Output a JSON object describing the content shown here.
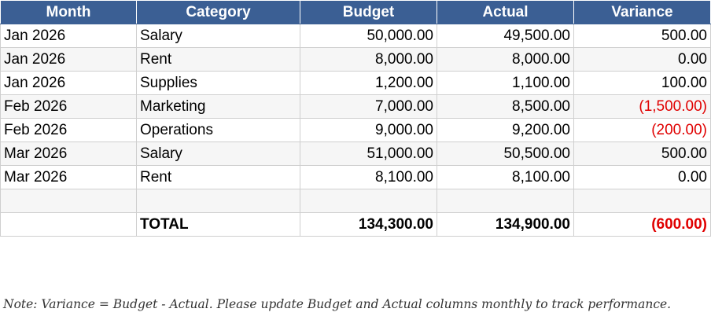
{
  "table": {
    "columns": [
      "Month",
      "Category",
      "Budget",
      "Actual",
      "Variance"
    ],
    "rows": [
      [
        "Jan 2026",
        "Salary",
        "50,000.00",
        "49,500.00",
        "500.00"
      ],
      [
        "Jan 2026",
        "Rent",
        "8,000.00",
        "8,000.00",
        "0.00"
      ],
      [
        "Jan 2026",
        "Supplies",
        "1,200.00",
        "1,100.00",
        "100.00"
      ],
      [
        "Feb 2026",
        "Marketing",
        "7,000.00",
        "8,500.00",
        "(1,500.00)"
      ],
      [
        "Feb 2026",
        "Operations",
        "9,000.00",
        "9,200.00",
        "(200.00)"
      ],
      [
        "Mar 2026",
        "Salary",
        "51,000.00",
        "50,500.00",
        "500.00"
      ],
      [
        "Mar 2026",
        "Rent",
        "8,100.00",
        "8,100.00",
        "0.00"
      ]
    ],
    "total": {
      "label": "TOTAL",
      "budget": "134,300.00",
      "actual": "134,900.00",
      "variance": "(600.00)"
    }
  },
  "note": "Note: Variance = Budget - Actual. Please update Budget and Actual columns monthly to track performance."
}
